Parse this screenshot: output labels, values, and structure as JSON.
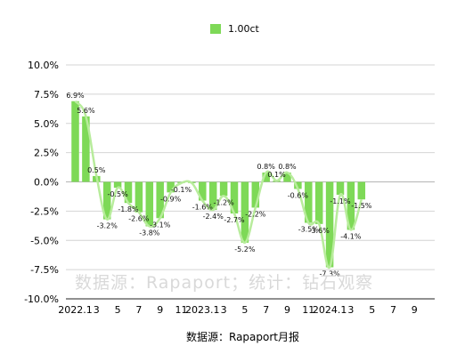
{
  "chart_data": {
    "type": "bar",
    "series": [
      {
        "name": "1.00ct",
        "values": [
          6.9,
          5.6,
          0.5,
          -3.2,
          -0.5,
          -1.8,
          -2.6,
          -3.8,
          -3.1,
          -0.9,
          -0.1,
          -0.1,
          -1.6,
          -2.4,
          -1.2,
          -2.7,
          -5.2,
          -2.2,
          0.8,
          0.1,
          0.8,
          -0.6,
          -3.5,
          -3.6,
          -7.3,
          -1.1,
          -4.1,
          -1.5
        ],
        "color": "#7ed957"
      }
    ],
    "data_labels": [
      "6.9%",
      "5.6%",
      "0.5%",
      "-3.2%",
      "-0.5%",
      "-1.8%",
      "-2.6%",
      "-3.8%",
      "-3.1%",
      "-0.9%",
      "-0.1%",
      "",
      "-1.6%",
      "-2.4%",
      "-1.2%",
      "-2.7%",
      "-5.2%",
      "-2.2%",
      "0.8%",
      "0.1%",
      "0.8%",
      "-0.6%",
      "-3.5%",
      "-3.6%",
      "-7.3%",
      "-1.1%",
      "-4.1%",
      "-1.5%"
    ],
    "x_tick_labels": [
      {
        "index": 0,
        "text": "2022.1"
      },
      {
        "index": 2,
        "text": "3"
      },
      {
        "index": 4,
        "text": "5"
      },
      {
        "index": 6,
        "text": "7"
      },
      {
        "index": 8,
        "text": "9"
      },
      {
        "index": 10,
        "text": "11"
      },
      {
        "index": 12,
        "text": "2023.1"
      },
      {
        "index": 14,
        "text": "3"
      },
      {
        "index": 16,
        "text": "5"
      },
      {
        "index": 18,
        "text": "7"
      },
      {
        "index": 20,
        "text": "9"
      },
      {
        "index": 22,
        "text": "11"
      },
      {
        "index": 24,
        "text": "2024.1"
      },
      {
        "index": 26,
        "text": "3"
      },
      {
        "index": 28,
        "text": "5"
      },
      {
        "index": 30,
        "text": "7"
      },
      {
        "index": 32,
        "text": "9"
      }
    ],
    "y_ticks": [
      10,
      7.5,
      5,
      2.5,
      0,
      -2.5,
      -5,
      -7.5,
      -10
    ],
    "y_tick_labels": [
      "10.0%",
      "7.5%",
      "5.0%",
      "2.5%",
      "0.0%",
      "-2.5%",
      "-5.0%",
      "-7.5%",
      "-10.0%"
    ],
    "ylim": [
      -10,
      10
    ],
    "grid": true,
    "legend": {
      "position": "top",
      "label": "1.00ct"
    },
    "trend_line": {
      "type": "smoothed",
      "color": "#b8ec9c"
    },
    "watermark": "数据源：Rapaport；统计：钻石观察",
    "source": "数据源：Rapaport月报"
  }
}
